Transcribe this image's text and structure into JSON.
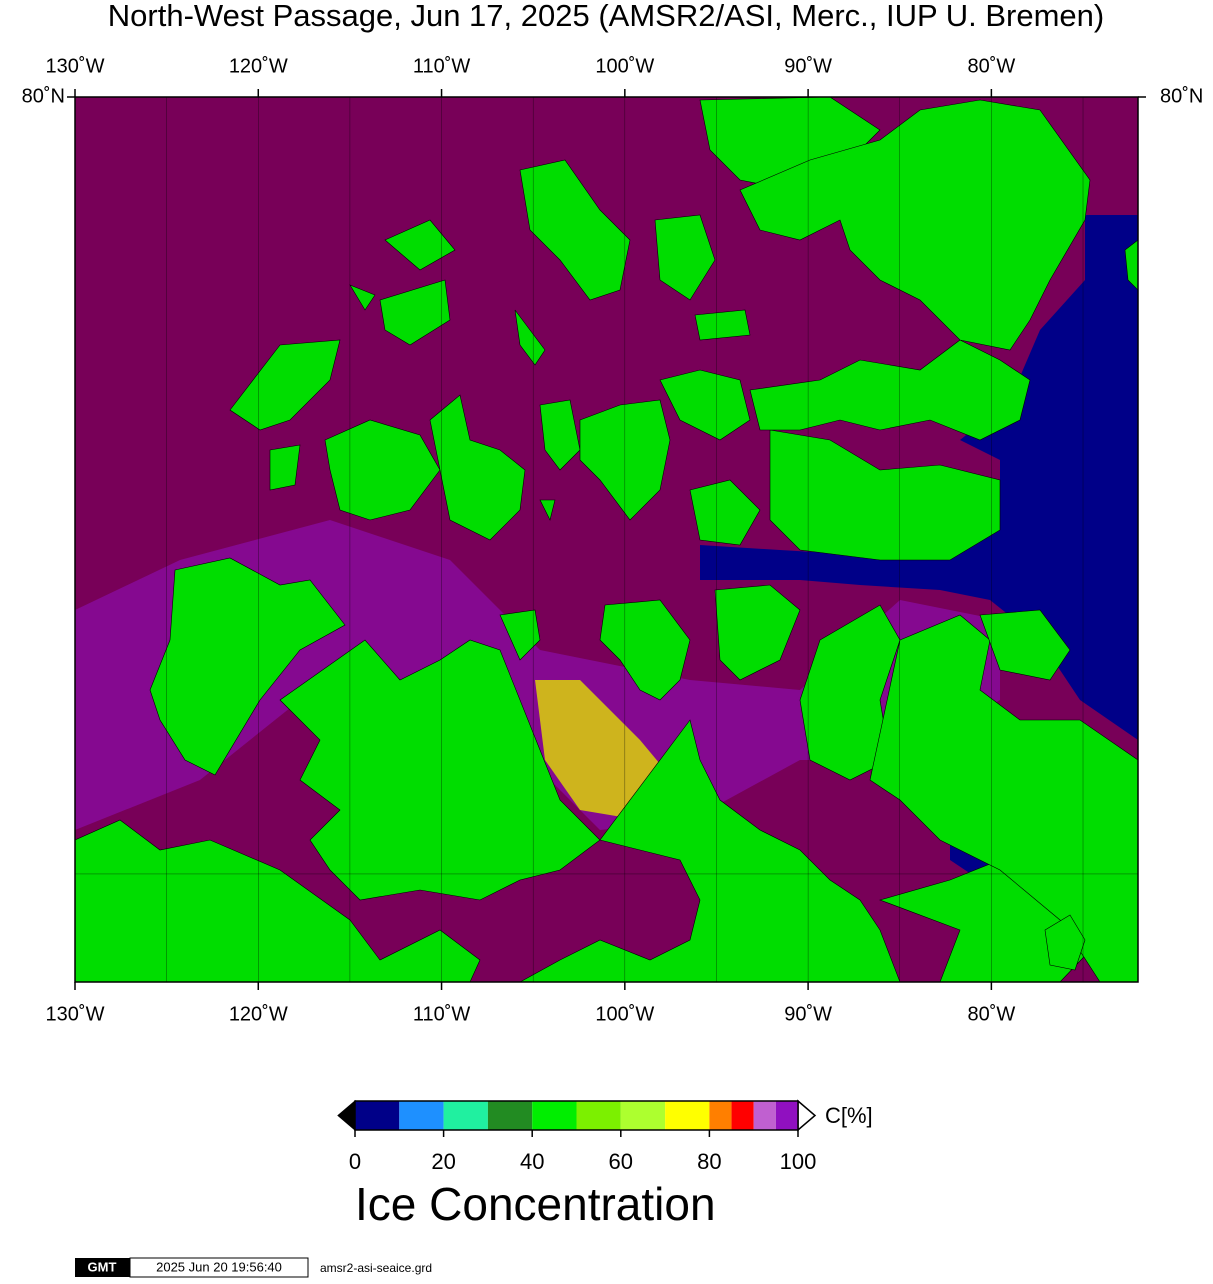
{
  "title": "North-West Passage, Jun 17, 2025 (AMSR2/ASI, Merc., IUP U. Bremen)",
  "map": {
    "xlim": [
      -130,
      -72
    ],
    "ylim": [
      68,
      80
    ],
    "xticks": [
      {
        "value": -130,
        "label": "130˚W"
      },
      {
        "value": -120,
        "label": "120˚W"
      },
      {
        "value": -110,
        "label": "110˚W"
      },
      {
        "value": -100,
        "label": "100˚W"
      },
      {
        "value": -90,
        "label": "90˚W"
      },
      {
        "value": -80,
        "label": "80˚W"
      }
    ],
    "yticks": [
      {
        "value": 80,
        "label": "80˚N"
      }
    ],
    "xgrid": [
      -130,
      -125,
      -120,
      -115,
      -110,
      -105,
      -100,
      -95,
      -90,
      -85,
      -80,
      -75
    ],
    "ygrid": [
      70
    ],
    "projection": "mercator"
  },
  "colorbar": {
    "bounds": [
      0,
      10,
      20,
      30,
      40,
      50,
      60,
      70,
      80,
      85,
      90,
      95,
      100
    ],
    "colors": [
      "#000088",
      "#1e90ff",
      "#20f0a0",
      "#228b22",
      "#00ee00",
      "#7cf000",
      "#adff2f",
      "#ffff00",
      "#ff7f00",
      "#ff0000",
      "#c060d0",
      "#9010c0"
    ],
    "ticks": [
      0,
      20,
      40,
      60,
      80,
      100
    ],
    "unit_label": "C[%]",
    "title": "Ice Concentration"
  },
  "footer": {
    "logo": "GMT",
    "timestamp": "2025 Jun 20 19:56:40",
    "file": "amsr2-asi-seaice.grd"
  }
}
